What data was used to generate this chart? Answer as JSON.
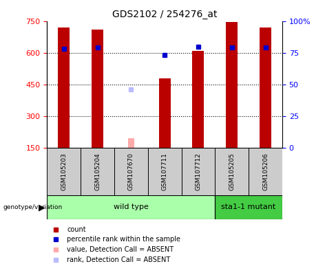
{
  "title": "GDS2102 / 254276_at",
  "samples": [
    "GSM105203",
    "GSM105204",
    "GSM107670",
    "GSM107711",
    "GSM107712",
    "GSM105205",
    "GSM105206"
  ],
  "counts": [
    720,
    710,
    null,
    480,
    610,
    745,
    720
  ],
  "percentile_ranks": [
    78,
    79,
    null,
    73,
    80,
    79,
    79
  ],
  "absent_value": [
    null,
    null,
    195,
    null,
    null,
    null,
    null
  ],
  "absent_rank": [
    null,
    null,
    46,
    null,
    null,
    null,
    null
  ],
  "ylim": [
    150,
    750
  ],
  "yticks": [
    150,
    300,
    450,
    600,
    750
  ],
  "right_ylim": [
    0,
    100
  ],
  "right_yticks": [
    0,
    25,
    50,
    75,
    100
  ],
  "right_yticklabels": [
    "0",
    "25",
    "50",
    "75",
    "100%"
  ],
  "grid_vals": [
    300,
    450,
    600
  ],
  "wild_type_n": 5,
  "mutant_n": 2,
  "bar_color": "#bb0000",
  "percentile_color": "#0000cc",
  "absent_bar_color": "#ffaaaa",
  "absent_rank_color": "#bbbbff",
  "wild_type_color": "#aaffaa",
  "mutant_color": "#44cc44",
  "sample_box_color": "#cccccc",
  "bar_width": 0.35,
  "absent_bar_width": 0.18,
  "legend_items": [
    {
      "color": "#bb0000",
      "label": "count"
    },
    {
      "color": "#0000cc",
      "label": "percentile rank within the sample"
    },
    {
      "color": "#ffaaaa",
      "label": "value, Detection Call = ABSENT"
    },
    {
      "color": "#bbbbff",
      "label": "rank, Detection Call = ABSENT"
    }
  ]
}
